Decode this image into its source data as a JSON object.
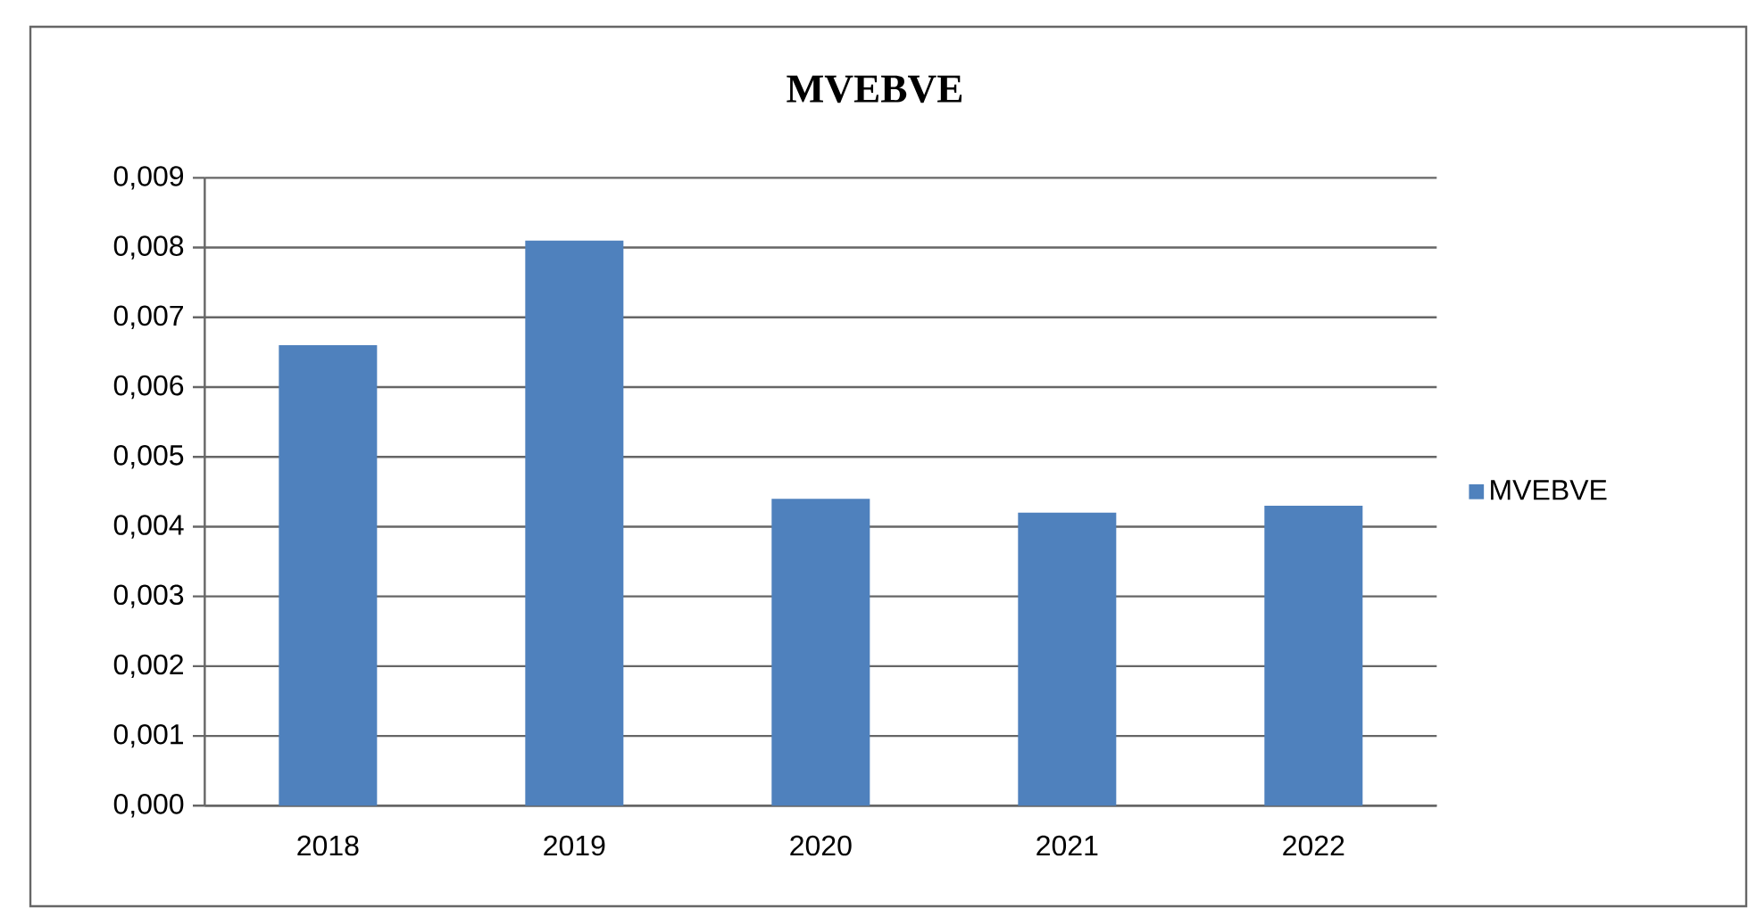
{
  "chart_data": {
    "type": "bar",
    "title": "MVEBVE",
    "categories": [
      "2018",
      "2019",
      "2020",
      "2021",
      "2022"
    ],
    "series": [
      {
        "name": "MVEBVE",
        "color": "#4f81bd",
        "values": [
          0.0066,
          0.0081,
          0.0044,
          0.0042,
          0.0043
        ]
      }
    ],
    "ylim": [
      0,
      0.009
    ],
    "yticks": [
      {
        "value": 0,
        "label": "0,000"
      },
      {
        "value": 0.001,
        "label": "0,001"
      },
      {
        "value": 0.002,
        "label": "0,002"
      },
      {
        "value": 0.003,
        "label": "0,003"
      },
      {
        "value": 0.004,
        "label": "0,004"
      },
      {
        "value": 0.005,
        "label": "0,005"
      },
      {
        "value": 0.006,
        "label": "0,006"
      },
      {
        "value": 0.007,
        "label": "0,007"
      },
      {
        "value": 0.008,
        "label": "0,008"
      },
      {
        "value": 0.009,
        "label": "0,009"
      }
    ],
    "grid": "y",
    "legend": "right"
  }
}
